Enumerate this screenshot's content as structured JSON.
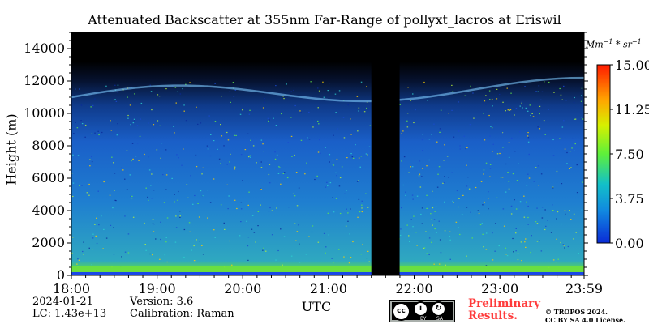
{
  "chart_data": {
    "type": "heatmap",
    "title": "Attenuated Backscatter at 355nm Far-Range of pollyxt_lacros at Eriswil",
    "xlabel": "UTC",
    "ylabel": "Height (m)",
    "x_ticks": [
      "18:00",
      "19:00",
      "20:00",
      "21:00",
      "22:00",
      "23:00",
      "23:59"
    ],
    "x_range_hours": [
      18.0,
      23.983
    ],
    "y_ticks": [
      0,
      2000,
      4000,
      6000,
      8000,
      10000,
      12000,
      14000
    ],
    "ylim": [
      0,
      15000
    ],
    "colorbar": {
      "ticks": [
        "0.00",
        "3.75",
        "7.50",
        "11.25",
        "15.00"
      ],
      "range": [
        0,
        15
      ],
      "colormap": "jet"
    },
    "no_data_gap_hours": [
      21.5,
      21.83
    ],
    "cloud_layer_height_m": [
      10200,
      12200
    ],
    "grid": false
  },
  "footer": {
    "date": "2024-01-21",
    "lc": "LC: 1.43e+13",
    "version": "Version: 3.6",
    "calibration": "Calibration: Raman",
    "prelim_line1": "Preliminary",
    "prelim_line2": "Results.",
    "copyright_line1": "© TROPOS 2024.",
    "copyright_line2": "CC BY SA 4.0 License.",
    "license_by": "BY",
    "license_sa": "SA"
  }
}
